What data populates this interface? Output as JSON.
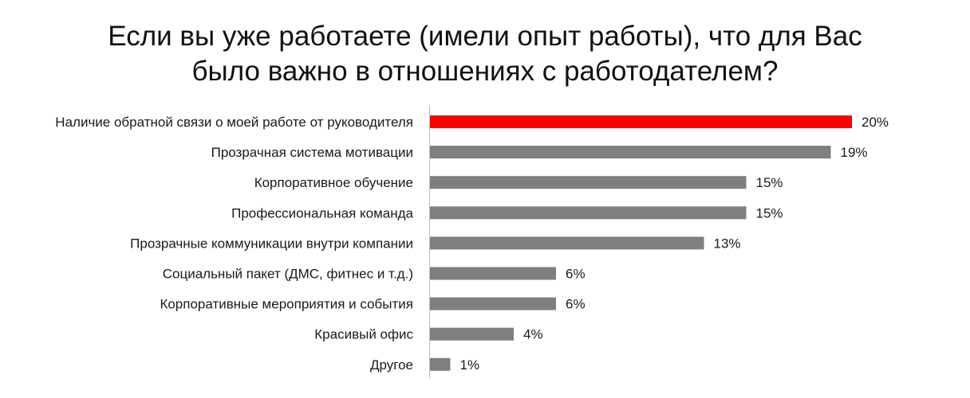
{
  "chart_data": {
    "type": "bar",
    "orientation": "horizontal",
    "title_lines": [
      "Если вы уже работаете (имели опыт работы), что для Вас",
      "было важно в отношениях с работодателем?"
    ],
    "categories": [
      "Наличие обратной связи о моей работе от руководителя",
      "Прозрачная система мотивации",
      "Корпоративное обучение",
      "Профессиональная команда",
      "Прозрачные коммуникации внутри компании",
      "Социальный пакет (ДМС, фитнес и т.д.)",
      "Корпоративные мероприятия и события",
      "Красивый офис",
      "Другое"
    ],
    "values": [
      20,
      19,
      15,
      15,
      13,
      6,
      6,
      4,
      1
    ],
    "value_labels": [
      "20%",
      "19%",
      "15%",
      "15%",
      "13%",
      "6%",
      "6%",
      "4%",
      "1%"
    ],
    "unit": "%",
    "xlim": [
      0,
      20
    ],
    "highlight_index": 0,
    "colors": {
      "highlight": "#ff0000",
      "default": "#7f7f7f",
      "axis": "#bfbfbf"
    },
    "grid": false,
    "legend": "none"
  }
}
